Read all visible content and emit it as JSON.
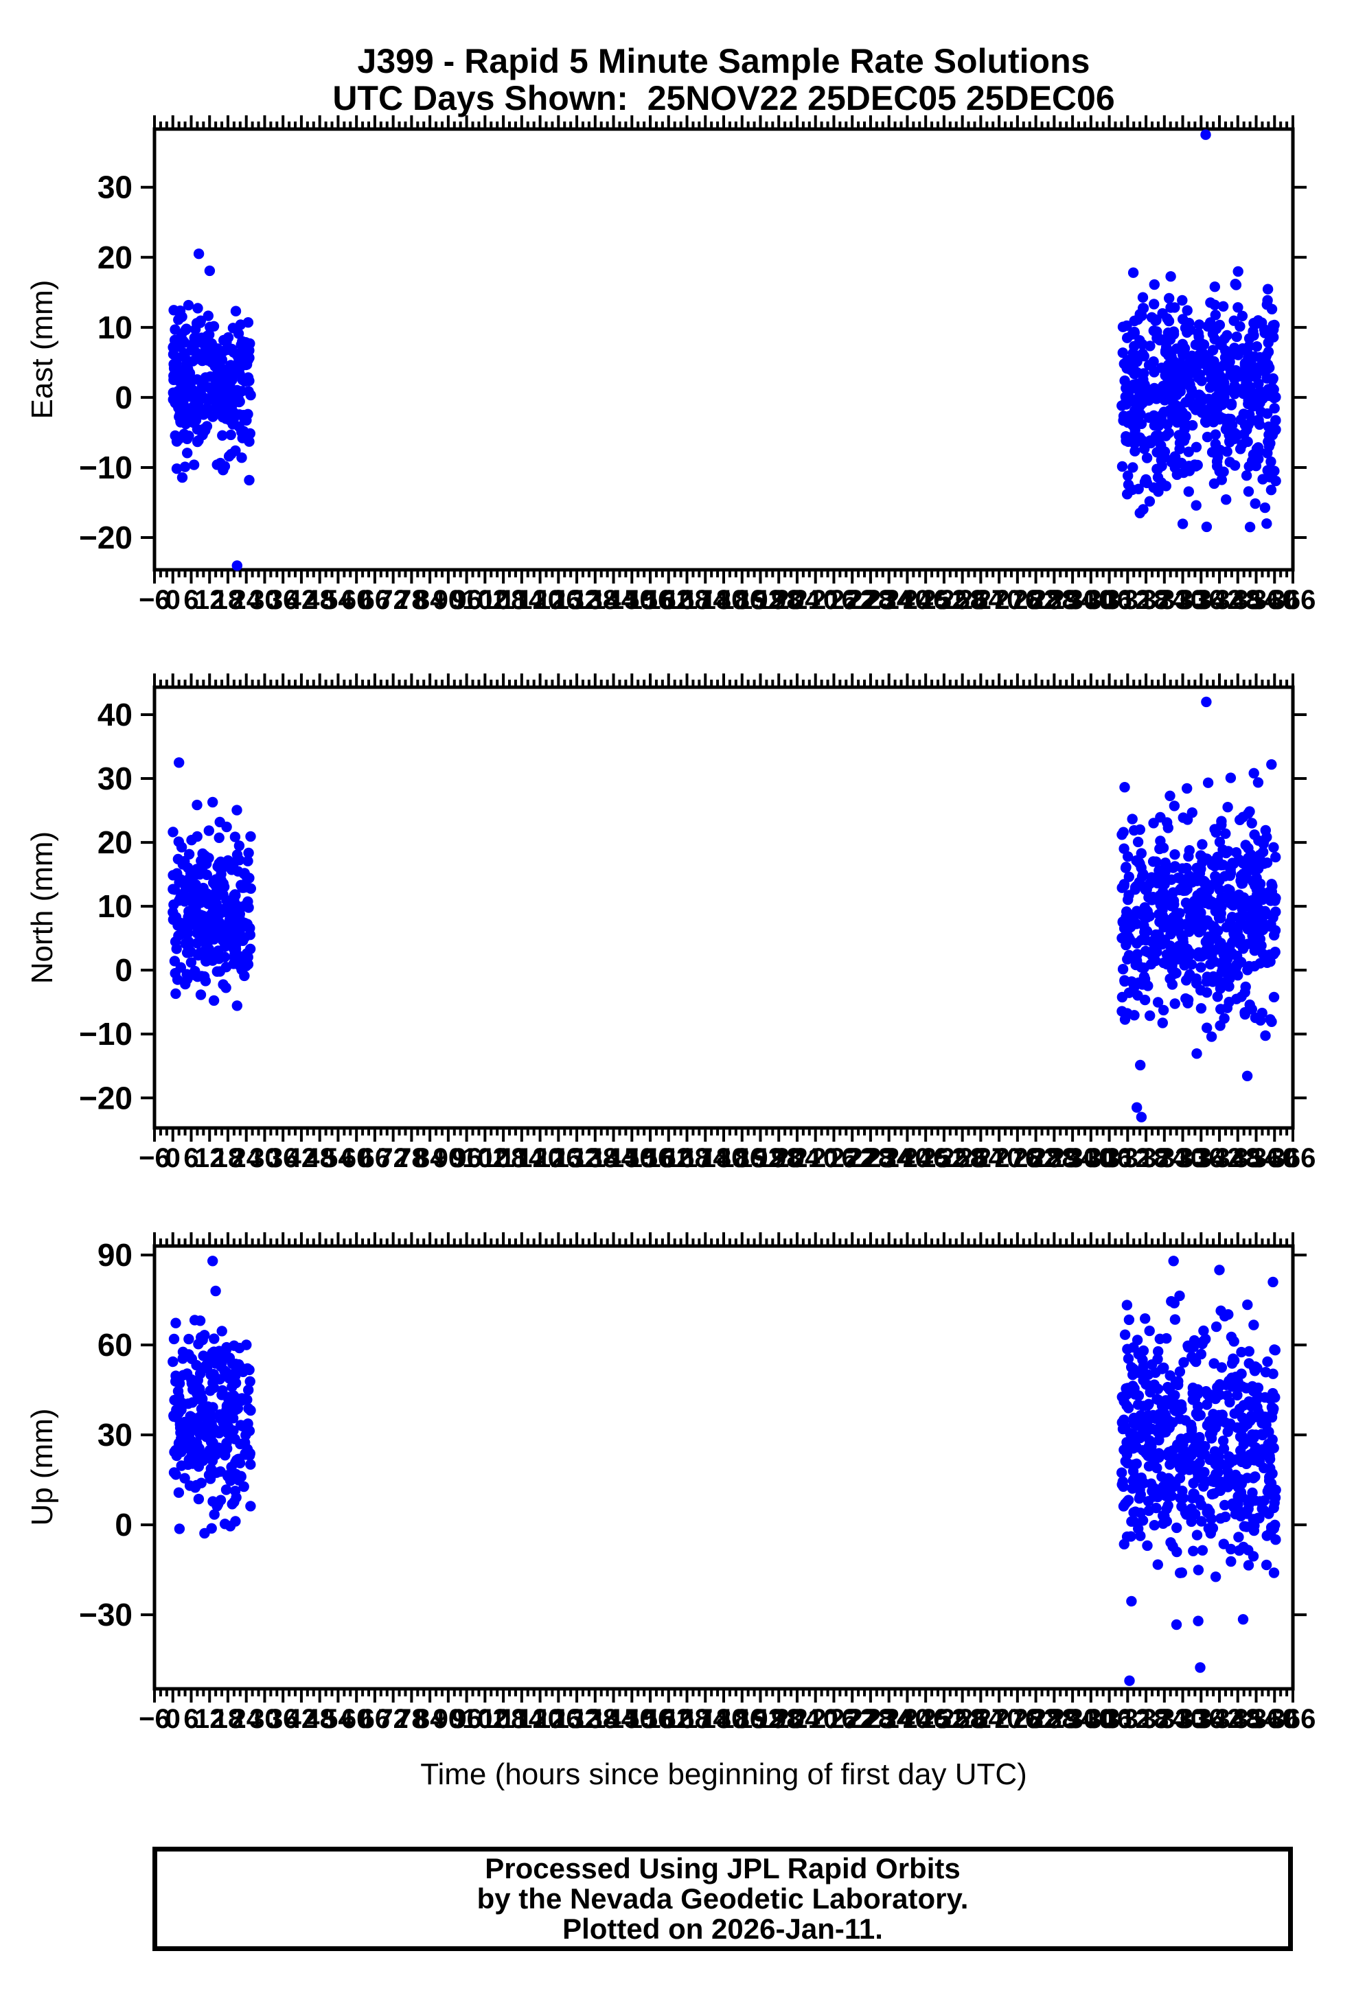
{
  "page": {
    "background": "#ffffff"
  },
  "header": {
    "title_line1": "J399 - Rapid 5 Minute Sample Rate Solutions",
    "title_line2": "UTC Days Shown:  25NOV22 25DEC05 25DEC06"
  },
  "footer": {
    "line1": "Processed Using JPL Rapid Orbits",
    "line2": "by the Nevada Geodetic Laboratory.",
    "line3": "Plotted on 2026-Jan-11."
  },
  "chart_data": {
    "type": "scatter",
    "station": "J399",
    "days_shown": [
      "25NOV22",
      "25DEC05",
      "25DEC06"
    ],
    "day_hour_ranges": [
      [
        0,
        24
      ],
      [
        312,
        336
      ],
      [
        336,
        360
      ]
    ],
    "marker": {
      "color": "#0000ff",
      "radius_px": 7.7
    },
    "grid": "off",
    "xaxis": {
      "label": "Time (hours since beginning of first day UTC)",
      "min": -6,
      "max": 366,
      "major_tick": 6,
      "minor_tick": 2,
      "label_every": 6
    },
    "panels": [
      {
        "id": "east",
        "ylabel": "East (mm)",
        "ylim": [
          -24.6,
          38.3
        ],
        "yticks": [
          30,
          20,
          10,
          0,
          -10,
          -20
        ],
        "clusters": [
          {
            "x_range": [
              0,
              25.5
            ],
            "n": 288,
            "mean": 1.8,
            "std": 5.2,
            "y_clip": [
              -13,
              20.5
            ],
            "seed": 11
          },
          {
            "x_range": [
              310,
              360.5
            ],
            "n": 576,
            "mean": 0.5,
            "std": 6.6,
            "y_clip": [
              -18.5,
              18
            ],
            "seed": 12
          }
        ],
        "outliers": [
          [
            21,
            -24
          ],
          [
            337.5,
            37.5
          ],
          [
            8.5,
            20.5
          ],
          [
            316,
            -16.5
          ],
          [
            352,
            -18.5
          ]
        ]
      },
      {
        "id": "north",
        "ylabel": "North (mm)",
        "ylim": [
          -24.7,
          44.3
        ],
        "yticks": [
          40,
          30,
          20,
          10,
          0,
          -10,
          -20
        ],
        "clusters": [
          {
            "x_range": [
              0,
              25.5
            ],
            "n": 288,
            "mean": 9.5,
            "std": 6.2,
            "y_clip": [
              -11,
              32.5
            ],
            "seed": 21
          },
          {
            "x_range": [
              310,
              360.5
            ],
            "n": 576,
            "mean": 8.5,
            "std": 7.5,
            "y_clip": [
              -23,
              32
            ],
            "seed": 22
          }
        ],
        "outliers": [
          [
            2,
            32.5
          ],
          [
            13,
            26.3
          ],
          [
            337.7,
            42
          ],
          [
            315,
            -21.5
          ],
          [
            316.5,
            -23
          ],
          [
            359,
            32.2
          ]
        ]
      },
      {
        "id": "up",
        "ylabel": "Up (mm)",
        "ylim": [
          -54.7,
          93
        ],
        "yticks": [
          90,
          60,
          30,
          0,
          -30
        ],
        "clusters": [
          {
            "x_range": [
              0,
              25.5
            ],
            "n": 288,
            "mean": 35,
            "std": 16,
            "y_clip": [
              -12,
              75
            ],
            "seed": 31
          },
          {
            "x_range": [
              310,
              360.5
            ],
            "n": 576,
            "mean": 28,
            "std": 19,
            "y_clip": [
              -45,
              78
            ],
            "seed": 32
          }
        ],
        "outliers": [
          [
            13,
            88
          ],
          [
            14,
            78
          ],
          [
            327,
            88
          ],
          [
            342,
            85
          ],
          [
            359.5,
            81
          ],
          [
            312.6,
            -52
          ],
          [
            335.7,
            -47.6
          ]
        ]
      }
    ]
  }
}
